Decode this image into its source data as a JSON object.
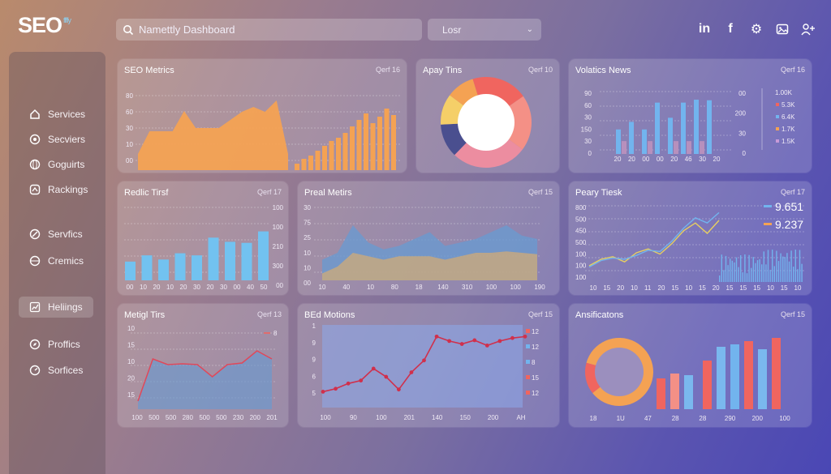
{
  "header": {
    "logo": "SEO",
    "logo_sup": "ffffy",
    "search_value": "Namettly Dashboard",
    "select_value": "Losr",
    "icons": [
      "linkedin-icon",
      "facebook-icon",
      "gear-icon",
      "image-icon",
      "user-add-icon"
    ]
  },
  "sidebar": {
    "items": [
      {
        "label": "Services",
        "icon": "home-icon"
      },
      {
        "label": "Secviers",
        "icon": "target-icon"
      },
      {
        "label": "Goguirts",
        "icon": "globe-icon"
      },
      {
        "label": "Rackings",
        "icon": "hierarchy-icon"
      },
      {
        "label": "Servfics",
        "icon": "link-icon"
      },
      {
        "label": "Cremics",
        "icon": "globe-icon"
      },
      {
        "label": "Heliings",
        "icon": "chart-icon",
        "active": true
      },
      {
        "label": "Proffics",
        "icon": "compass-icon"
      },
      {
        "label": "Sorfices",
        "icon": "gauge-icon"
      }
    ]
  },
  "cards": {
    "seo": {
      "title": "SEO Metrics",
      "period": "Qerf 16"
    },
    "apay": {
      "title": "Apay Tins",
      "period": "Qerf 10"
    },
    "volatics": {
      "title": "Volatics News",
      "period": "Qerf 16"
    },
    "redic": {
      "title": "Redlic Tirsf",
      "period": "Qerf 17"
    },
    "preal": {
      "title": "Preal Metirs",
      "period": "Qerf 15"
    },
    "peary": {
      "title": "Peary Tiesk",
      "period": "Qerf 17"
    },
    "metigl": {
      "title": "Metigl Tirs",
      "period": "Qerf 13"
    },
    "bed": {
      "title": "BEd Motions",
      "period": "Qerf 15"
    },
    "ansi": {
      "title": "Ansificatons",
      "period": "Qerf 15"
    }
  },
  "chart_data": [
    {
      "id": "seo",
      "type": "area",
      "ylabels": [
        "80",
        "60",
        "30",
        "10",
        "00"
      ],
      "area_values": [
        20,
        48,
        48,
        48,
        73,
        52,
        52,
        52,
        62,
        72,
        78,
        72,
        86,
        20
      ],
      "bar_values": [
        8,
        14,
        18,
        24,
        30,
        36,
        40,
        46,
        54,
        62,
        70,
        58,
        66,
        76,
        68
      ]
    },
    {
      "id": "apay",
      "type": "pie",
      "slices": [
        {
          "value": 20,
          "color": "#f0655f"
        },
        {
          "value": 20,
          "color": "#f49086"
        },
        {
          "value": 27,
          "color": "#ec8da0"
        },
        {
          "value": 12,
          "color": "#4a4f8f"
        },
        {
          "value": 11,
          "color": "#f5cf68"
        },
        {
          "value": 10,
          "color": "#f4a253"
        }
      ]
    },
    {
      "id": "volatics",
      "type": "bar",
      "ylabels_left": [
        "90",
        "60",
        "30",
        "150",
        "30",
        "0"
      ],
      "xlabels": [
        "20",
        "20",
        "00",
        "00",
        "20",
        "46",
        "30",
        "20"
      ],
      "ylabels_right": [
        "00",
        "200",
        "30",
        "0"
      ],
      "series": [
        {
          "color": "#72b4ee",
          "values": [
            42,
            55,
            42,
            88,
            62,
            88,
            93,
            92
          ]
        },
        {
          "color": "#b790bd",
          "values": [
            22,
            0,
            22,
            0,
            22,
            22,
            22,
            0
          ]
        }
      ],
      "legend": [
        {
          "label": "1.00K",
          "color": "#f0eaf5"
        },
        {
          "label": "5.3K",
          "color": "#f0655f"
        },
        {
          "label": "6.4K",
          "color": "#72b4ee"
        },
        {
          "label": "1.7K",
          "color": "#f4a253"
        },
        {
          "label": "1.5K",
          "color": "#c79ad8"
        }
      ]
    },
    {
      "id": "redic",
      "type": "bar",
      "ylabels": [
        "100",
        "100",
        "210",
        "300",
        "00"
      ],
      "xlabels": [
        "00",
        "10",
        "20",
        "10",
        "20",
        "30",
        "20",
        "30",
        "00",
        "40",
        "50"
      ],
      "values": [
        18,
        24,
        20,
        26,
        24,
        41,
        37,
        36,
        47,
        49,
        49,
        62,
        59,
        61,
        50
      ],
      "color": "#72c2f0"
    },
    {
      "id": "preal",
      "type": "area",
      "ylabels": [
        "30",
        "75",
        "25",
        "10",
        "10",
        "00"
      ],
      "xlabels": [
        "10",
        "40",
        "10",
        "80",
        "18",
        "140",
        "310",
        "100",
        "100",
        "190"
      ],
      "series": [
        {
          "color": "#6a9ad0",
          "values": [
            30,
            40,
            80,
            55,
            45,
            50,
            60,
            70,
            50,
            55,
            60,
            70,
            80,
            65,
            60
          ]
        },
        {
          "color": "#c5a880",
          "values": [
            10,
            20,
            40,
            35,
            30,
            35,
            35,
            35,
            30,
            35,
            40,
            40,
            42,
            40,
            38
          ]
        }
      ]
    },
    {
      "id": "peary",
      "type": "line",
      "ylabels": [
        "800",
        "500",
        "450",
        "500",
        "100",
        "100",
        "100"
      ],
      "xlabels": [
        "10",
        "15",
        "20",
        "10",
        "11",
        "20",
        "15",
        "10",
        "15",
        "20",
        "15",
        "15",
        "15",
        "10",
        "15",
        "10"
      ],
      "legend": [
        {
          "label": "9.651",
          "color": "#72b4ee"
        },
        {
          "label": "9.237",
          "color": "#f4a253"
        }
      ],
      "series": [
        {
          "color": "#e8d060",
          "values": [
            5,
            10,
            12,
            8,
            15,
            18,
            14,
            22,
            32,
            38,
            30,
            40
          ]
        },
        {
          "color": "#72b4ee",
          "values": [
            4,
            9,
            11,
            10,
            13,
            17,
            16,
            24,
            34,
            42,
            38,
            46
          ]
        }
      ]
    },
    {
      "id": "metigl",
      "type": "area",
      "ylabels": [
        "10",
        "15",
        "10",
        "20",
        "15"
      ],
      "xlabels": [
        "100",
        "500",
        "500",
        "280",
        "500",
        "500",
        "230",
        "200",
        "201"
      ],
      "legend": [
        {
          "label": "8",
          "color": "#f0655f"
        }
      ],
      "values": [
        10,
        62,
        55,
        56,
        55,
        40,
        55,
        57,
        72,
        62
      ]
    },
    {
      "id": "bed",
      "type": "line",
      "ylabels": [
        "1",
        "9",
        "9",
        "6",
        "5"
      ],
      "xlabels": [
        "100",
        "90",
        "100",
        "201",
        "140",
        "150",
        "200",
        "AH"
      ],
      "legend": [
        {
          "label": "12",
          "color": "#f0655f"
        },
        {
          "label": "12",
          "color": "#72b4ee"
        },
        {
          "label": "8",
          "color": "#72b4ee"
        },
        {
          "label": "15",
          "color": "#f0655f"
        },
        {
          "label": "12",
          "color": "#f0655f"
        }
      ],
      "values": [
        18,
        22,
        29,
        33,
        49,
        38,
        21,
        44,
        60,
        92,
        86,
        82,
        87,
        80,
        86,
        90,
        92
      ]
    },
    {
      "id": "ansi",
      "type": "bar",
      "xlabels": [
        "18",
        "1U",
        "47",
        "28",
        "28",
        "290",
        "200",
        "100"
      ],
      "donut": [
        {
          "value": 85,
          "color": "#f4a253"
        },
        {
          "value": 15,
          "color": "#f0655f"
        }
      ],
      "bars": [
        {
          "v": 38,
          "c": "#f0655f"
        },
        {
          "v": 44,
          "c": "#f49086"
        },
        {
          "v": 42,
          "c": "#7ab8ee"
        },
        {
          "v": 60,
          "c": "#f0655f"
        },
        {
          "v": 77,
          "c": "#7ab8ee"
        },
        {
          "v": 80,
          "c": "#72b4ee"
        },
        {
          "v": 84,
          "c": "#f0655f"
        },
        {
          "v": 74,
          "c": "#7ab8ee"
        },
        {
          "v": 88,
          "c": "#f0655f"
        }
      ]
    }
  ]
}
